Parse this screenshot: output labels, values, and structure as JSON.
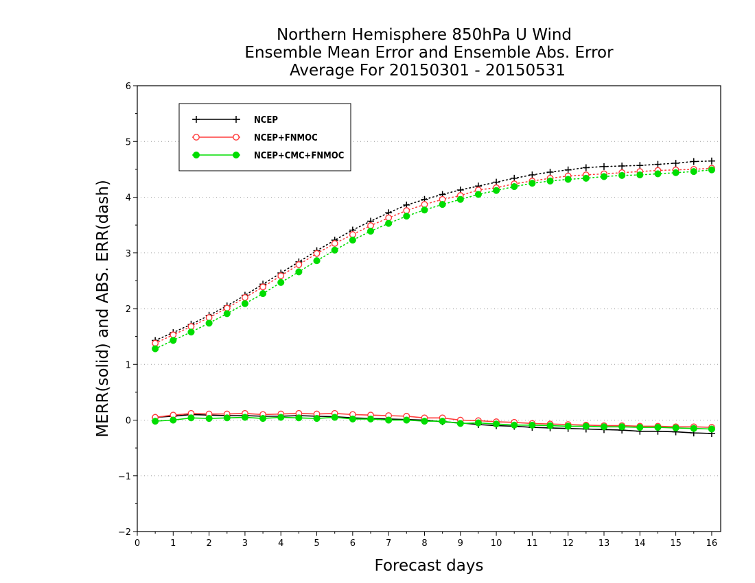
{
  "chart_data": {
    "type": "line",
    "title": "Northern Hemisphere 850hPa U Wind",
    "subtitle": "Ensemble Mean Error and Ensemble Abs. Error",
    "subtitle2": "Average For 20150301 - 20150531",
    "xlabel": "Forecast days",
    "ylabel": "MERR(solid) and ABS. ERR(dash)",
    "xlim": [
      0,
      16.25
    ],
    "ylim": [
      -2,
      6
    ],
    "xticks": [
      "0",
      "1",
      "2",
      "3",
      "4",
      "5",
      "6",
      "7",
      "8",
      "9",
      "10",
      "11",
      "12",
      "13",
      "14",
      "15",
      "16"
    ],
    "yticks": [
      "-2",
      "-1",
      "0",
      "1",
      "2",
      "3",
      "4",
      "5",
      "6"
    ],
    "grid": "horizontal dotted",
    "legend_position": "top-left",
    "x": [
      0.5,
      1,
      1.5,
      2,
      2.5,
      3,
      3.5,
      4,
      4.5,
      5,
      5.5,
      6,
      6.5,
      7,
      7.5,
      8,
      8.5,
      9,
      9.5,
      10,
      10.5,
      11,
      11.5,
      12,
      12.5,
      13,
      13.5,
      14,
      14.5,
      15,
      15.5,
      16
    ],
    "series": [
      {
        "name": "NCEP",
        "color": "#000000",
        "marker": "plus",
        "abs_err": [
          1.43,
          1.57,
          1.72,
          1.88,
          2.05,
          2.24,
          2.44,
          2.64,
          2.84,
          3.04,
          3.23,
          3.41,
          3.57,
          3.72,
          3.86,
          3.96,
          4.05,
          4.13,
          4.2,
          4.27,
          4.34,
          4.4,
          4.45,
          4.49,
          4.53,
          4.55,
          4.56,
          4.57,
          4.59,
          4.61,
          4.64,
          4.65
        ],
        "mean_err": [
          0.05,
          0.07,
          0.1,
          0.09,
          0.08,
          0.08,
          0.07,
          0.07,
          0.08,
          0.07,
          0.06,
          0.04,
          0.03,
          0.02,
          0.01,
          0.0,
          -0.03,
          -0.05,
          -0.08,
          -0.1,
          -0.11,
          -0.13,
          -0.14,
          -0.15,
          -0.16,
          -0.17,
          -0.18,
          -0.2,
          -0.2,
          -0.21,
          -0.23,
          -0.24
        ]
      },
      {
        "name": "NCEP+FNMOC",
        "color": "#ff3b3b",
        "marker": "open-circle",
        "abs_err": [
          1.38,
          1.53,
          1.68,
          1.84,
          2.01,
          2.2,
          2.39,
          2.59,
          2.79,
          2.99,
          3.17,
          3.33,
          3.49,
          3.63,
          3.76,
          3.87,
          3.96,
          4.03,
          4.13,
          4.17,
          4.24,
          4.29,
          4.34,
          4.38,
          4.4,
          4.42,
          4.44,
          4.46,
          4.48,
          4.49,
          4.5,
          4.52
        ],
        "mean_err": [
          0.05,
          0.09,
          0.12,
          0.11,
          0.11,
          0.12,
          0.1,
          0.11,
          0.12,
          0.11,
          0.12,
          0.1,
          0.09,
          0.08,
          0.07,
          0.04,
          0.04,
          0.0,
          -0.01,
          -0.03,
          -0.04,
          -0.06,
          -0.07,
          -0.08,
          -0.09,
          -0.1,
          -0.1,
          -0.11,
          -0.11,
          -0.12,
          -0.12,
          -0.13
        ]
      },
      {
        "name": "NCEP+CMC+FNMOC",
        "color": "#00dd00",
        "marker": "filled-circle",
        "abs_err": [
          1.28,
          1.43,
          1.58,
          1.74,
          1.91,
          2.09,
          2.27,
          2.47,
          2.66,
          2.86,
          3.05,
          3.23,
          3.39,
          3.53,
          3.66,
          3.77,
          3.87,
          3.96,
          4.05,
          4.12,
          4.19,
          4.25,
          4.29,
          4.32,
          4.34,
          4.37,
          4.39,
          4.4,
          4.42,
          4.44,
          4.46,
          4.49
        ],
        "mean_err": [
          -0.02,
          0.0,
          0.04,
          0.03,
          0.04,
          0.05,
          0.03,
          0.05,
          0.04,
          0.03,
          0.05,
          0.02,
          0.02,
          0.0,
          0.0,
          -0.02,
          -0.02,
          -0.06,
          -0.05,
          -0.07,
          -0.09,
          -0.09,
          -0.1,
          -0.11,
          -0.11,
          -0.12,
          -0.12,
          -0.13,
          -0.13,
          -0.14,
          -0.15,
          -0.16
        ]
      }
    ]
  }
}
